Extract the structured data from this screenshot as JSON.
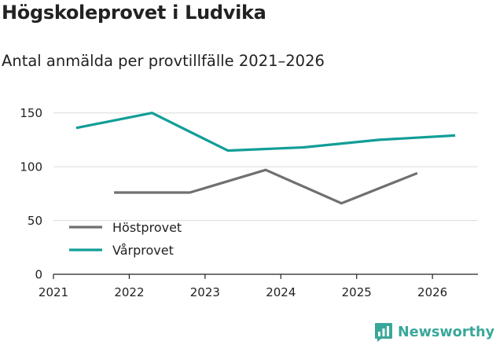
{
  "header": {
    "title": "Högskoleprovet i Ludvika",
    "subtitle": "Antal anmälda per provtillfälle 2021–2026"
  },
  "brand": {
    "name": "Newsworthy",
    "color": "#39a79a"
  },
  "chart_data": {
    "type": "line",
    "title": "Högskoleprovet i Ludvika",
    "subtitle": "Antal anmälda per provtillfälle 2021–2026",
    "xlabel": "",
    "ylabel": "",
    "xlim": [
      2021,
      2026.6
    ],
    "ylim": [
      0,
      160
    ],
    "x_ticks": [
      2021,
      2022,
      2023,
      2024,
      2025,
      2026
    ],
    "y_ticks": [
      0,
      50,
      100,
      150
    ],
    "grid": true,
    "legend_position": "bottom-left",
    "series": [
      {
        "name": "Höstprovet",
        "color": "#707070",
        "x": [
          2021.8,
          2022.8,
          2023.8,
          2024.8,
          2025.8
        ],
        "values": [
          76,
          76,
          97,
          66,
          94
        ]
      },
      {
        "name": "Vårprovet",
        "color": "#119e96",
        "x": [
          2021.3,
          2022.3,
          2023.3,
          2024.3,
          2025.3,
          2026.3
        ],
        "values": [
          136,
          150,
          115,
          118,
          125,
          129
        ]
      }
    ]
  }
}
